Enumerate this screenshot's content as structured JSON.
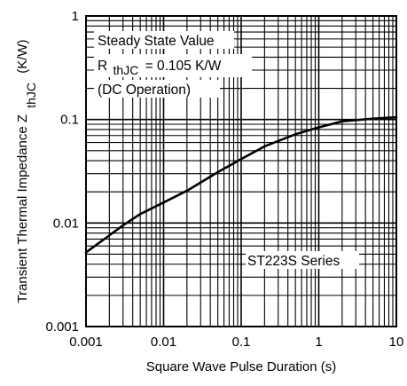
{
  "chart_data": {
    "type": "line",
    "xlabel": "Square Wave Pulse Duration (s)",
    "ylabel_main": "Transient Thermal Impedance Z",
    "ylabel_sub": "thJC",
    "ylabel_unit": "(K/W)",
    "x_scale": "log",
    "y_scale": "log",
    "xlim": [
      0.001,
      10
    ],
    "ylim": [
      0.001,
      1
    ],
    "grid": true,
    "x_ticks": [
      "0.001",
      "0.01",
      "0.1",
      "1",
      "10"
    ],
    "y_ticks": [
      "0.001",
      "0.01",
      "0.1",
      "1"
    ],
    "series": [
      {
        "x": [
          0.001,
          0.002,
          0.003,
          0.005,
          0.01,
          0.02,
          0.05,
          0.1,
          0.2,
          0.5,
          1,
          2,
          5,
          10
        ],
        "values": [
          0.0052,
          0.0076,
          0.0095,
          0.0122,
          0.0158,
          0.0205,
          0.031,
          0.0415,
          0.055,
          0.072,
          0.084,
          0.096,
          0.102,
          0.105
        ]
      }
    ],
    "annotations": {
      "steady_state": "Steady State Value",
      "r_prefix": "R",
      "r_sub": "thJC",
      "r_value": "= 0.105 K/W",
      "dc": "(DC Operation)",
      "series_label": "ST223S Series"
    }
  }
}
